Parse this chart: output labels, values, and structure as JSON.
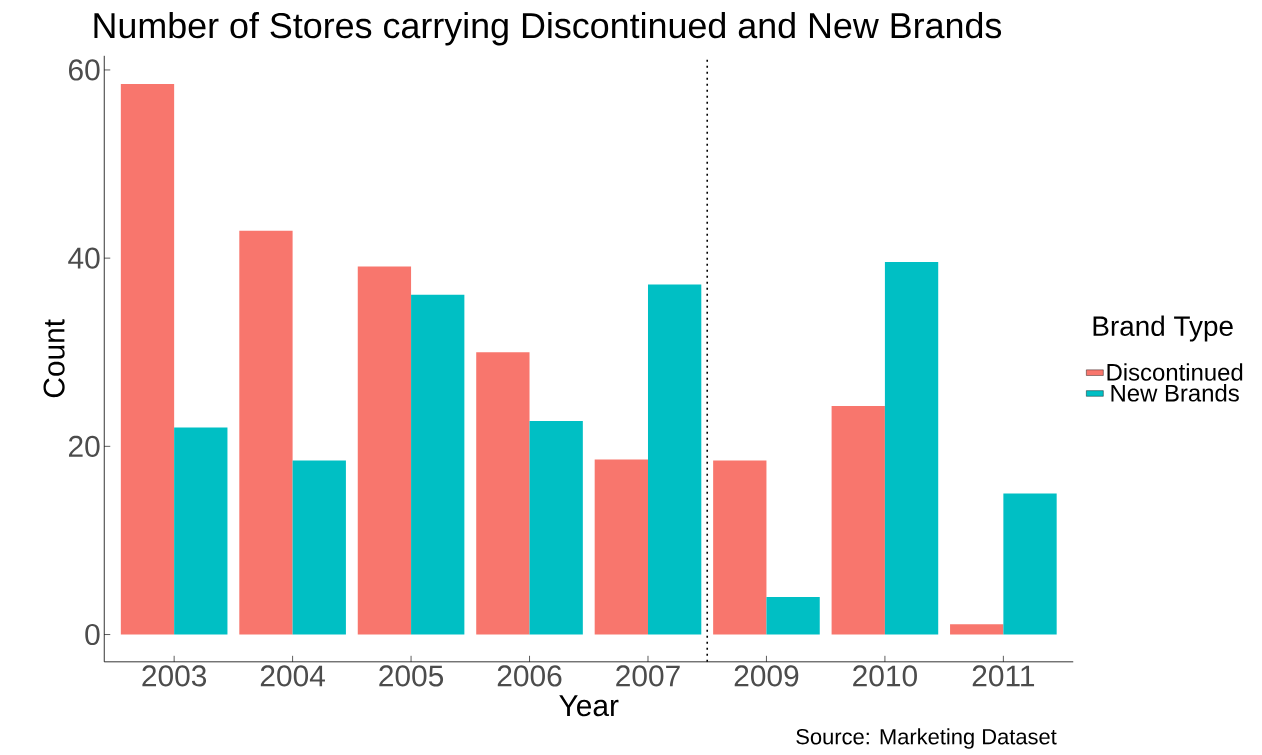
{
  "chart_data": {
    "type": "bar",
    "title": "Number of Stores carrying Discontinued and New Brands",
    "xlabel": "Year",
    "ylabel": "Count",
    "legend_title": "Brand Type",
    "annotations": [
      "Source: Marketing Dataset"
    ],
    "categories": [
      "2003",
      "2004",
      "2005",
      "2006",
      "2007",
      "2009",
      "2010",
      "2011"
    ],
    "series": [
      {
        "name": "Discontinued",
        "color": "#f8766d",
        "values": [
          58.5,
          42.9,
          39.1,
          30.0,
          18.6,
          18.5,
          24.3,
          1.1
        ]
      },
      {
        "name": "New Brands",
        "color": "#00bfc4",
        "values": [
          22.0,
          18.5,
          36.1,
          22.7,
          37.2,
          4.0,
          39.6,
          15.0
        ]
      }
    ],
    "ylim": [
      -2.9,
      61.5
    ],
    "yticks": [
      0,
      20,
      40,
      60
    ],
    "grid": false,
    "legend": "right"
  }
}
